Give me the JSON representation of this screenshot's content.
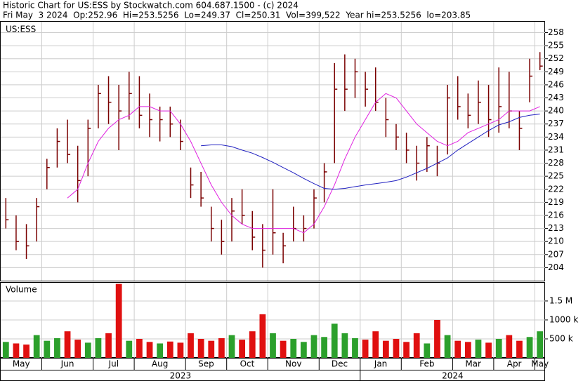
{
  "header": {
    "line1": "Historic Chart for US:ESS by Stockwatch.com 604.687.1500 - (c) 2024",
    "line2": "Fri May  3 2024  Op:252.96  Hi=253.5256  Lo=249.37  Cl=250.31  Vol=399,522  Year hi=253.5256  lo=203.85"
  },
  "chart_data": [
    {
      "type": "ohlc",
      "title": "US:ESS",
      "color": "#7a0000",
      "categories": [
        "May",
        null,
        null,
        null,
        "Jun",
        null,
        null,
        null,
        null,
        "Jul",
        null,
        null,
        null,
        "Aug",
        null,
        null,
        null,
        null,
        "Sep",
        null,
        null,
        null,
        "Oct",
        null,
        null,
        null,
        "Nov",
        null,
        null,
        null,
        null,
        "Dec",
        null,
        null,
        null,
        "Jan",
        null,
        null,
        null,
        "Feb",
        null,
        null,
        null,
        null,
        "Mar",
        null,
        null,
        null,
        "Apr",
        null,
        null,
        null,
        "May"
      ],
      "year_ticks": [
        {
          "value": 0,
          "label": "2023"
        },
        {
          "value": 35,
          "label": "2024"
        }
      ],
      "high": [
        220,
        216,
        214,
        220,
        229,
        236,
        238,
        232,
        238,
        246,
        248,
        246,
        249,
        248,
        244,
        241,
        241,
        238,
        227,
        226,
        218,
        215,
        220,
        222,
        217,
        214,
        222,
        212,
        218,
        216,
        222,
        228,
        251,
        253,
        252,
        249,
        250,
        243,
        237,
        235,
        232,
        234,
        232,
        246,
        248,
        244,
        247,
        246,
        250,
        249,
        240,
        252,
        253.5256
      ],
      "low": [
        213,
        208,
        206,
        210,
        222,
        227,
        228,
        219,
        225,
        236,
        237,
        231,
        238,
        236,
        234,
        233,
        234,
        231,
        220,
        218,
        210,
        207,
        210,
        214,
        208,
        204,
        207,
        205,
        210,
        210,
        213,
        219,
        228,
        240,
        243,
        241,
        240,
        234,
        231,
        228,
        224,
        226,
        225,
        230,
        238,
        236,
        237,
        234,
        235,
        236,
        231,
        242,
        249.37
      ],
      "close": [
        215,
        210,
        209,
        218,
        227,
        233,
        230,
        224,
        236,
        244,
        242,
        240,
        244,
        239,
        238,
        238,
        237,
        233,
        223,
        220,
        213,
        210,
        217,
        216,
        211,
        208,
        212,
        209,
        213,
        213,
        220,
        226,
        245,
        245,
        249,
        245,
        242,
        238,
        234,
        231,
        228,
        232,
        228,
        243,
        241,
        239,
        242,
        238,
        241,
        240,
        236,
        248,
        250.31
      ],
      "series": [
        {
          "name": "MA short",
          "color": "#e020e0",
          "values": [
            null,
            null,
            null,
            null,
            null,
            null,
            220,
            222,
            228,
            233,
            236,
            238,
            239,
            241,
            241,
            240,
            240,
            237,
            233,
            228,
            223,
            219,
            216,
            214,
            213,
            213,
            213,
            213,
            213,
            212,
            214,
            218,
            223,
            229,
            234,
            238,
            242,
            244,
            243,
            240,
            237,
            235,
            233,
            232,
            233,
            235,
            236,
            237,
            238,
            240,
            240,
            240,
            241
          ]
        },
        {
          "name": "MA long",
          "color": "#2020c0",
          "values": [
            null,
            null,
            null,
            null,
            null,
            null,
            null,
            null,
            null,
            null,
            null,
            null,
            null,
            null,
            null,
            null,
            null,
            null,
            null,
            232,
            232.2,
            232.2,
            231.8,
            231,
            230.3,
            229.3,
            228.2,
            227,
            225.8,
            224.5,
            223.3,
            222.2,
            222,
            222.2,
            222.6,
            223,
            223.3,
            223.6,
            224,
            224.8,
            225.8,
            226.8,
            228,
            229.2,
            231,
            232.5,
            234,
            235.5,
            236.8,
            237.5,
            238.5,
            239,
            239.3
          ]
        }
      ],
      "ylim": [
        201,
        260.5
      ],
      "yticks": [
        204,
        207,
        210,
        213,
        216,
        219,
        222,
        225,
        228,
        231,
        234,
        237,
        240,
        243,
        246,
        249,
        252,
        255,
        258
      ],
      "grid": true
    },
    {
      "type": "bar",
      "title": "Volume",
      "up_color": "#2ca02c",
      "down_color": "#e01010",
      "values": [
        420000,
        380000,
        350000,
        600000,
        450000,
        520000,
        700000,
        480000,
        400000,
        520000,
        650000,
        1950000,
        450000,
        500000,
        420000,
        380000,
        430000,
        400000,
        650000,
        500000,
        450000,
        520000,
        600000,
        480000,
        700000,
        1150000,
        650000,
        450000,
        500000,
        420000,
        600000,
        550000,
        900000,
        650000,
        520000,
        480000,
        700000,
        450000,
        500000,
        420000,
        650000,
        380000,
        1000000,
        600000,
        450000,
        420000,
        480000,
        400000,
        500000,
        600000,
        450000,
        550000,
        700000
      ],
      "ylim": [
        0,
        1980000
      ],
      "yticks": [
        {
          "value": 500000,
          "label": "500 k"
        },
        {
          "value": 1000000,
          "label": "1000 k"
        },
        {
          "value": 1500000,
          "label": "1.5 M"
        }
      ],
      "grid": true
    }
  ]
}
